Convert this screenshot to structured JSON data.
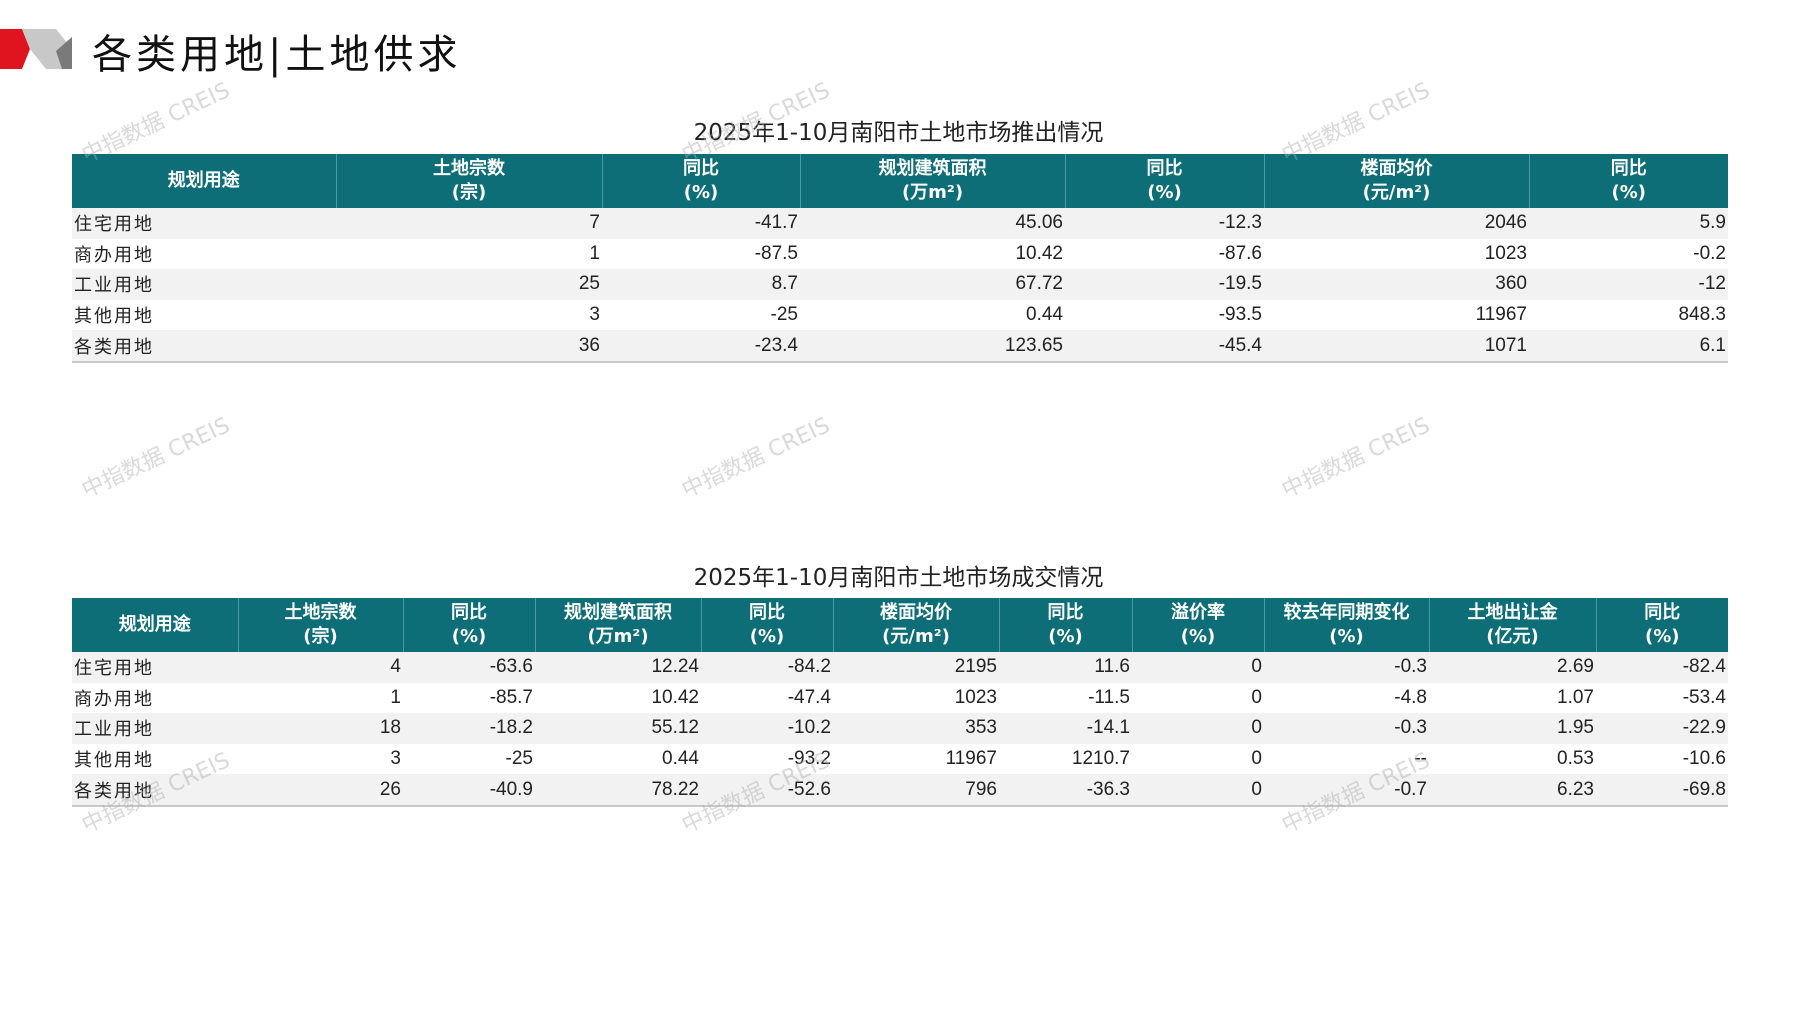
{
  "header": {
    "title": "各类用地|土地供求",
    "accent": "#e0141e"
  },
  "watermark": "中指数据 CREIS",
  "colors": {
    "table_header": "#0d6e78",
    "row_stripe": "#f2f2f2"
  },
  "supply": {
    "title": "2025年1-10月南阳市土地市场推出情况",
    "columns": [
      [
        "规划用途",
        ""
      ],
      [
        "土地宗数",
        "(宗)"
      ],
      [
        "同比",
        "(%)"
      ],
      [
        "规划建筑面积",
        "(万m²)"
      ],
      [
        "同比",
        "(%)"
      ],
      [
        "楼面均价",
        "(元/m²)"
      ],
      [
        "同比",
        "(%)"
      ]
    ],
    "rows": [
      [
        "住宅用地",
        "7",
        "-41.7",
        "45.06",
        "-12.3",
        "2046",
        "5.9"
      ],
      [
        "商办用地",
        "1",
        "-87.5",
        "10.42",
        "-87.6",
        "1023",
        "-0.2"
      ],
      [
        "工业用地",
        "25",
        "8.7",
        "67.72",
        "-19.5",
        "360",
        "-12"
      ],
      [
        "其他用地",
        "3",
        "-25",
        "0.44",
        "-93.5",
        "11967",
        "848.3"
      ],
      [
        "各类用地",
        "36",
        "-23.4",
        "123.65",
        "-45.4",
        "1071",
        "6.1"
      ]
    ]
  },
  "deal": {
    "title": "2025年1-10月南阳市土地市场成交情况",
    "columns": [
      [
        "规划用途",
        ""
      ],
      [
        "土地宗数",
        "(宗)"
      ],
      [
        "同比",
        "(%)"
      ],
      [
        "规划建筑面积",
        "(万m²)"
      ],
      [
        "同比",
        "(%)"
      ],
      [
        "楼面均价",
        "(元/m²)"
      ],
      [
        "同比",
        "(%)"
      ],
      [
        "溢价率",
        "(%)"
      ],
      [
        "较去年同期变化",
        "(%)"
      ],
      [
        "土地出让金",
        "(亿元)"
      ],
      [
        "同比",
        "(%)"
      ]
    ],
    "rows": [
      [
        "住宅用地",
        "4",
        "-63.6",
        "12.24",
        "-84.2",
        "2195",
        "11.6",
        "0",
        "-0.3",
        "2.69",
        "-82.4"
      ],
      [
        "商办用地",
        "1",
        "-85.7",
        "10.42",
        "-47.4",
        "1023",
        "-11.5",
        "0",
        "-4.8",
        "1.07",
        "-53.4"
      ],
      [
        "工业用地",
        "18",
        "-18.2",
        "55.12",
        "-10.2",
        "353",
        "-14.1",
        "0",
        "-0.3",
        "1.95",
        "-22.9"
      ],
      [
        "其他用地",
        "3",
        "-25",
        "0.44",
        "-93.2",
        "11967",
        "1210.7",
        "0",
        "--",
        "0.53",
        "-10.6"
      ],
      [
        "各类用地",
        "26",
        "-40.9",
        "78.22",
        "-52.6",
        "796",
        "-36.3",
        "0",
        "-0.7",
        "6.23",
        "-69.8"
      ]
    ]
  }
}
